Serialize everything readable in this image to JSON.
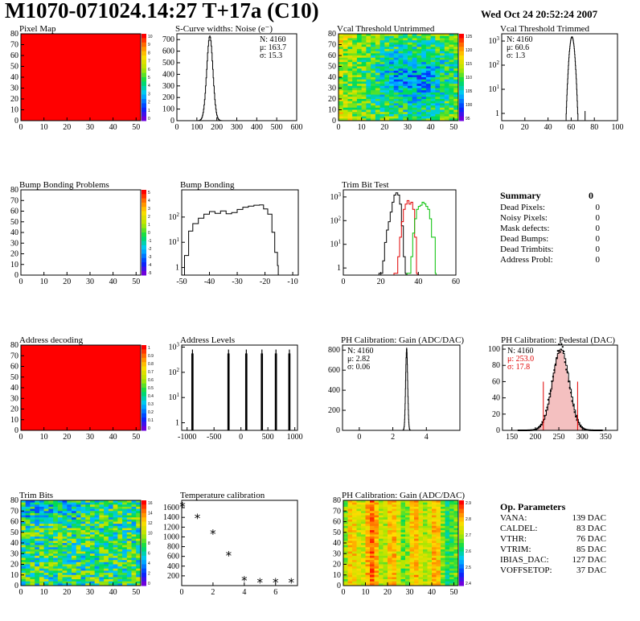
{
  "header": {
    "title": "M1070-071024.14:27 T+17a (C10)",
    "date": "Wed Oct 24 20:52:24 2007"
  },
  "summary": {
    "title": "Summary",
    "total": "0",
    "rows": [
      {
        "label": "Dead Pixels:",
        "value": "0"
      },
      {
        "label": "Noisy Pixels:",
        "value": "0"
      },
      {
        "label": "Mask defects:",
        "value": "0"
      },
      {
        "label": "Dead Bumps:",
        "value": "0"
      },
      {
        "label": "Dead Trimbits:",
        "value": "0"
      },
      {
        "label": "Address Probl:",
        "value": "0"
      }
    ]
  },
  "op_params": {
    "title": "Op. Parameters",
    "rows": [
      {
        "label": "VANA:",
        "value": "139 DAC"
      },
      {
        "label": "CALDEL:",
        "value": "83 DAC"
      },
      {
        "label": "VTHR:",
        "value": "76 DAC"
      },
      {
        "label": "VTRIM:",
        "value": "85 DAC"
      },
      {
        "label": "IBIAS_DAC:",
        "value": "127 DAC"
      },
      {
        "label": "VOFFSETOP:",
        "value": "37 DAC"
      }
    ]
  },
  "chart_data": [
    {
      "id": "pixel-map",
      "type": "heatmap",
      "title": "Pixel Map",
      "xlim": [
        0,
        52
      ],
      "ylim": [
        0,
        80
      ],
      "xticks": [
        0,
        10,
        20,
        30,
        40,
        50
      ],
      "yticks": [
        0,
        10,
        20,
        30,
        40,
        50,
        60,
        70,
        80
      ],
      "pattern": "uniform",
      "fill_level": 1.0,
      "palette": "rainbow",
      "zticks": [
        "10",
        "9",
        "8",
        "7",
        "6",
        "5",
        "4",
        "3",
        "2",
        "1",
        "0"
      ]
    },
    {
      "id": "scurve-noise",
      "type": "line",
      "title": "S-Curve widths: Noise (e⁻)",
      "xlim": [
        0,
        600
      ],
      "ylim": [
        0,
        750
      ],
      "xticks": [
        0,
        100,
        200,
        300,
        400,
        500,
        600
      ],
      "yticks": [
        0,
        100,
        200,
        300,
        400,
        500,
        600,
        700
      ],
      "log": false,
      "stats": [
        "N: 4160",
        "μ: 163.7",
        "σ: 15.3"
      ],
      "peaks": [
        {
          "mean": 163.7,
          "sigma": 15.3,
          "height": 730
        }
      ]
    },
    {
      "id": "vcal-untrimmed",
      "type": "heatmap",
      "title": "Vcal Threshold Untrimmed",
      "xlim": [
        0,
        52
      ],
      "ylim": [
        0,
        80
      ],
      "xticks": [
        0,
        10,
        20,
        30,
        40,
        50
      ],
      "yticks": [
        0,
        10,
        20,
        30,
        40,
        50,
        60,
        70,
        80
      ],
      "pattern": "center_low",
      "palette": "rainbow",
      "zmin": 93,
      "zmax": 128,
      "zticks": [
        "125",
        "120",
        "115",
        "110",
        "105",
        "100",
        "95"
      ]
    },
    {
      "id": "vcal-trimmed",
      "type": "line",
      "title": "Vcal Threshold Trimmed",
      "xlim": [
        0,
        100
      ],
      "ylog": [
        0.5,
        2000
      ],
      "xticks": [
        0,
        20,
        40,
        60,
        80,
        100
      ],
      "yticks": [
        1,
        10,
        100,
        1000
      ],
      "log": true,
      "stats": [
        "N: 4160",
        "μ: 60.6",
        "σ: 1.3"
      ],
      "peaks": [
        {
          "mean": 60.6,
          "sigma": 1.3,
          "height": 1500
        }
      ],
      "spikes": [
        {
          "x": 72,
          "y": 1
        }
      ]
    },
    {
      "id": "bump-bonding-problems",
      "type": "heatmap",
      "title": "Bump Bonding Problems",
      "xlim": [
        0,
        52
      ],
      "ylim": [
        0,
        80
      ],
      "xticks": [
        0,
        10,
        20,
        30,
        40,
        50
      ],
      "yticks": [
        0,
        10,
        20,
        30,
        40,
        50,
        60,
        70,
        80
      ],
      "pattern": "empty",
      "palette": "rainbow",
      "zticks": [
        "5",
        "4",
        "3",
        "2",
        "1",
        "0",
        "-1",
        "-2",
        "-3",
        "-4",
        "-5"
      ]
    },
    {
      "id": "bump-bonding",
      "type": "line",
      "title": "Bump Bonding",
      "xlim": [
        -50,
        -8
      ],
      "ylog": [
        0.5,
        1200
      ],
      "xticks": [
        -50,
        -40,
        -30,
        -20,
        -10
      ],
      "yticks": [
        1,
        10,
        100
      ],
      "log": true,
      "profile": [
        [
          -49,
          3
        ],
        [
          -47.5,
          28
        ],
        [
          -46,
          55
        ],
        [
          -44,
          90
        ],
        [
          -42,
          130
        ],
        [
          -40,
          165
        ],
        [
          -38,
          140
        ],
        [
          -36,
          175
        ],
        [
          -34,
          135
        ],
        [
          -32,
          150
        ],
        [
          -30,
          200
        ],
        [
          -28,
          245
        ],
        [
          -26,
          270
        ],
        [
          -24,
          295
        ],
        [
          -22,
          305
        ],
        [
          -20.5,
          210
        ],
        [
          -19,
          130
        ],
        [
          -17.5,
          25
        ],
        [
          -16.5,
          4
        ],
        [
          -15.5,
          1.2
        ]
      ]
    },
    {
      "id": "trim-bit-test",
      "type": "line",
      "title": "Trim Bit Test",
      "xlim": [
        0,
        60
      ],
      "ylog": [
        0.5,
        2000
      ],
      "xticks": [
        0,
        20,
        40,
        60
      ],
      "yticks": [
        1,
        10,
        100,
        1000
      ],
      "log": true,
      "series": [
        {
          "color": "#000000",
          "points": [
            [
              19,
              0.6
            ],
            [
              21,
              2
            ],
            [
              22,
              12
            ],
            [
              23,
              40
            ],
            [
              24,
              90
            ],
            [
              25,
              230
            ],
            [
              26,
              600
            ],
            [
              27,
              1200
            ],
            [
              28,
              1500
            ],
            [
              29,
              1200
            ],
            [
              30,
              500
            ],
            [
              31,
              60
            ],
            [
              32,
              3
            ],
            [
              33,
              0.6
            ]
          ]
        },
        {
          "color": "#e00000",
          "points": [
            [
              27,
              0.6
            ],
            [
              29,
              3
            ],
            [
              30,
              20
            ],
            [
              31,
              90
            ],
            [
              32,
              300
            ],
            [
              33,
              500
            ],
            [
              34,
              700
            ],
            [
              35,
              500
            ],
            [
              36,
              600
            ],
            [
              37,
              300
            ],
            [
              38,
              20
            ],
            [
              39,
              0.6
            ]
          ]
        },
        {
          "color": "#00c000",
          "points": [
            [
              34,
              0.6
            ],
            [
              36,
              3
            ],
            [
              37,
              30
            ],
            [
              38,
              120
            ],
            [
              39,
              300
            ],
            [
              40,
              400
            ],
            [
              41,
              450
            ],
            [
              42,
              600
            ],
            [
              43,
              520
            ],
            [
              44,
              400
            ],
            [
              45,
              300
            ],
            [
              46,
              120
            ],
            [
              47,
              20
            ],
            [
              49,
              0.6
            ]
          ]
        }
      ]
    },
    {
      "id": "address-decoding",
      "type": "heatmap",
      "title": "Address decoding",
      "xlim": [
        0,
        52
      ],
      "ylim": [
        0,
        80
      ],
      "xticks": [
        0,
        10,
        20,
        30,
        40,
        50
      ],
      "yticks": [
        0,
        10,
        20,
        30,
        40,
        50,
        60,
        70,
        80
      ],
      "pattern": "uniform",
      "fill_level": 1.0,
      "palette": "rainbow",
      "zticks": [
        "1",
        "0.9",
        "0.8",
        "0.7",
        "0.6",
        "0.5",
        "0.4",
        "0.3",
        "0.2",
        "0.1",
        "0"
      ]
    },
    {
      "id": "address-levels",
      "type": "line",
      "title": "Address Levels",
      "xlim": [
        -1100,
        1050
      ],
      "ylog": [
        0.5,
        1200
      ],
      "xticks": [
        -1000,
        -500,
        0,
        500,
        1000
      ],
      "yticks": [
        1,
        10,
        100,
        1000
      ],
      "log": true,
      "spike_groups": [
        -900,
        -230,
        100,
        390,
        650,
        900
      ],
      "spike_height": 800
    },
    {
      "id": "ph-gain",
      "type": "line",
      "title": "PH Calibration: Gain (ADC/DAC)",
      "xlim": [
        -1,
        6
      ],
      "ylim": [
        0,
        850
      ],
      "xticks": [
        0,
        2,
        4
      ],
      "yticks": [
        0,
        200,
        400,
        600,
        800
      ],
      "log": false,
      "stats": [
        "N: 4160",
        "μ: 2.82",
        "σ: 0.06"
      ],
      "peaks": [
        {
          "mean": 2.82,
          "sigma": 0.06,
          "height": 820
        }
      ]
    },
    {
      "id": "ph-pedestal",
      "type": "line",
      "title": "PH Calibration: Pedestal (DAC)",
      "xlim": [
        130,
        375
      ],
      "ylim": [
        0,
        105
      ],
      "xticks": [
        150,
        200,
        250,
        300,
        350
      ],
      "yticks": [
        0,
        20,
        40,
        60,
        80,
        100
      ],
      "log": false,
      "stats": [
        "N: 4160",
        "μ: 253.0",
        "σ: 17.8"
      ],
      "stats_colors": [
        "#000000",
        "#e00000",
        "#e00000"
      ],
      "peaks": [
        {
          "mean": 253,
          "sigma": 17.8,
          "height": 100
        }
      ],
      "markers": [
        217,
        290
      ]
    },
    {
      "id": "trim-bits",
      "type": "heatmap",
      "title": "Trim Bits",
      "xlim": [
        0,
        52
      ],
      "ylim": [
        0,
        80
      ],
      "xticks": [
        0,
        10,
        20,
        30,
        40,
        50
      ],
      "yticks": [
        0,
        10,
        20,
        30,
        40,
        50,
        60,
        70,
        80
      ],
      "pattern": "noise_mid",
      "palette": "rainbow",
      "zticks": [
        "16",
        "14",
        "12",
        "10",
        "8",
        "6",
        "4",
        "2",
        "0"
      ]
    },
    {
      "id": "temperature-calibration",
      "type": "scatter",
      "title": "Temperature calibration",
      "xlim": [
        0,
        7.4
      ],
      "ylim": [
        0,
        1750
      ],
      "xticks": [
        0,
        2,
        4,
        6
      ],
      "yticks": [
        200,
        400,
        600,
        800,
        1000,
        1200,
        1400,
        1600
      ],
      "x": [
        0,
        1,
        2,
        3,
        4,
        5,
        6,
        7
      ],
      "y": [
        1620,
        1380,
        1060,
        610,
        100,
        60,
        55,
        55
      ]
    },
    {
      "id": "ph-gain-map",
      "type": "heatmap",
      "title": "PH Calibration: Gain (ADC/DAC)",
      "xlim": [
        0,
        52
      ],
      "ylim": [
        0,
        80
      ],
      "xticks": [
        0,
        10,
        20,
        30,
        40,
        50
      ],
      "yticks": [
        0,
        10,
        20,
        30,
        40,
        50,
        60,
        70,
        80
      ],
      "pattern": "columns_hot",
      "palette": "rainbow",
      "zticks": [
        "2.9",
        "2.8",
        "2.7",
        "2.6",
        "2.5",
        "2.4"
      ]
    }
  ]
}
